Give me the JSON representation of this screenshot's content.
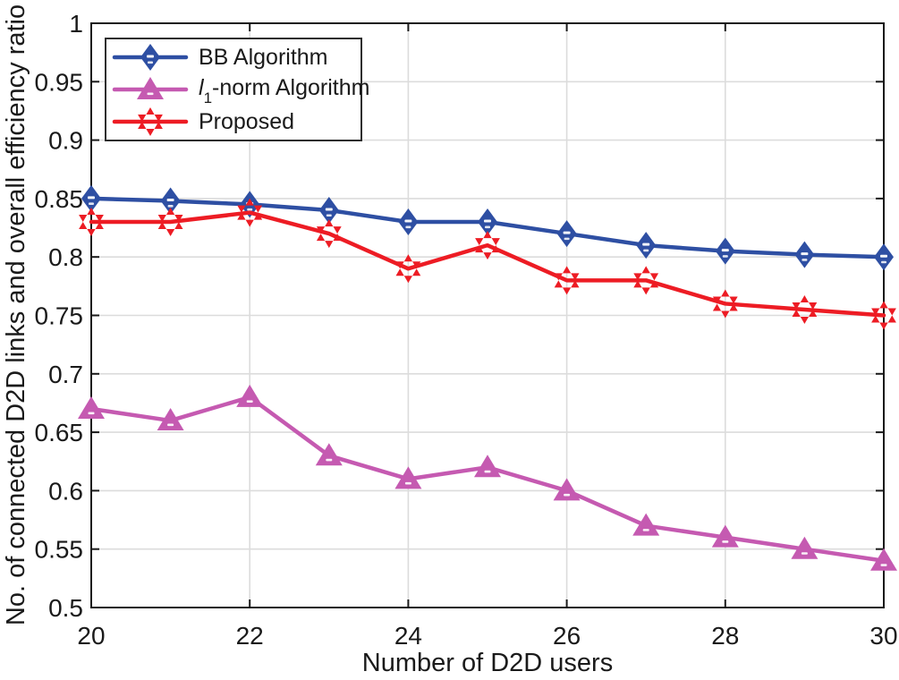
{
  "chart_data": {
    "type": "line",
    "title": "",
    "xlabel": "Number of D2D users",
    "ylabel": "No. of connected D2D links and overall efficiency ratio",
    "x": [
      20,
      21,
      22,
      23,
      24,
      25,
      26,
      27,
      28,
      29,
      30
    ],
    "xlim": [
      20,
      30
    ],
    "ylim": [
      0.5,
      1.0
    ],
    "xticks": [
      20,
      22,
      24,
      26,
      28,
      30
    ],
    "xtick_labels": [
      "20",
      "22",
      "24",
      "26",
      "28",
      "30"
    ],
    "yticks": [
      0.5,
      0.55,
      0.6,
      0.65,
      0.7,
      0.75,
      0.8,
      0.85,
      0.9,
      0.95,
      1
    ],
    "ytick_labels": [
      "0.5",
      "0.55",
      "0.6",
      "0.65",
      "0.7",
      "0.75",
      "0.8",
      "0.85",
      "0.9",
      "0.95",
      "1"
    ],
    "grid": true,
    "legend_position": "top-left",
    "series": [
      {
        "name": "BB Algorithm",
        "marker": "diamond",
        "color": "#2E4FA3",
        "values": [
          0.85,
          0.848,
          0.845,
          0.84,
          0.83,
          0.83,
          0.82,
          0.81,
          0.805,
          0.802,
          0.8
        ]
      },
      {
        "name": "l1-norm Algorithm",
        "name_parts": {
          "prefix": "l",
          "sub": "1",
          "rest": "-norm Algorithm"
        },
        "marker": "triangle-up",
        "color": "#C55AB1",
        "values": [
          0.67,
          0.66,
          0.68,
          0.63,
          0.61,
          0.62,
          0.6,
          0.57,
          0.56,
          0.55,
          0.54
        ]
      },
      {
        "name": "Proposed",
        "marker": "hexagram",
        "color": "#ED1C24",
        "values": [
          0.83,
          0.83,
          0.838,
          0.82,
          0.79,
          0.81,
          0.78,
          0.78,
          0.76,
          0.755,
          0.75
        ]
      }
    ]
  },
  "colors": {
    "background": "#FFFFFF",
    "axis": "#1a1a1a",
    "grid": "#DCDCDC",
    "text": "#1a1a1a",
    "legend_border": "#2e2e2e"
  }
}
